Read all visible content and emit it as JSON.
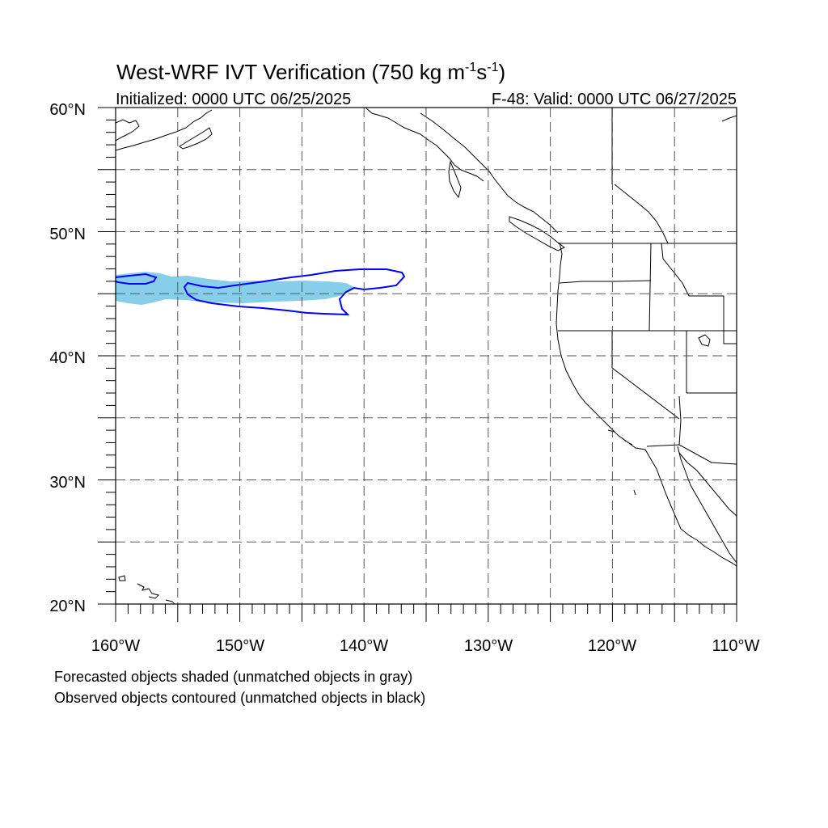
{
  "title": {
    "main": "West-WRF IVT Verification (750 kg m",
    "sup1": "-1",
    "mid": "s",
    "sup2": "-1",
    "end": ")"
  },
  "subtitle": {
    "left": "Initialized: 0000 UTC 06/25/2025",
    "right": "F-48: Valid: 0000 UTC 06/27/2025"
  },
  "map": {
    "lon_range": [
      -160,
      -110
    ],
    "lat_range": [
      20,
      60
    ],
    "lon_ticks": [
      "160°W",
      "150°W",
      "140°W",
      "130°W",
      "120°W",
      "110°W"
    ],
    "lat_ticks": [
      "60°N",
      "50°N",
      "40°N",
      "30°N",
      "20°N"
    ],
    "grid": "dashed every 5 degrees",
    "forecast_fill_color": "#87ceeb",
    "observed_contour_color": "#0000ff",
    "coastline_color": "#000000"
  },
  "footnotes": {
    "line1": "Forecasted objects shaded (unmatched objects in gray)",
    "line2": "Observed objects contoured (unmatched objects in black)"
  }
}
